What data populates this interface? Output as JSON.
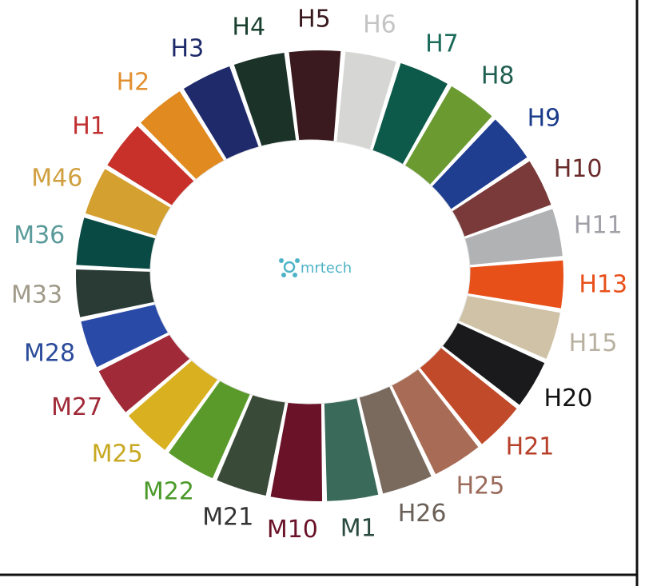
{
  "logo": {
    "text": "mrtech",
    "color": "#4fb3c8"
  },
  "swatches": [
    {
      "label": "H5",
      "color": "#3a1a1e",
      "label_color": "#3a1a1e"
    },
    {
      "label": "H6",
      "color": "#d6d6d4",
      "label_color": "#c4c4c4"
    },
    {
      "label": "H7",
      "color": "#0d5a4a",
      "label_color": "#1a6a5a"
    },
    {
      "label": "H8",
      "color": "#6a9a30",
      "label_color": "#1f5f50"
    },
    {
      "label": "H9",
      "color": "#1f3e90",
      "label_color": "#1a3a8a"
    },
    {
      "label": "H10",
      "color": "#7a3a3a",
      "label_color": "#6a2a2a"
    },
    {
      "label": "H11",
      "color": "#b0b2b4",
      "label_color": "#a0a0a8"
    },
    {
      "label": "H13",
      "color": "#e8501a",
      "label_color": "#e8501a"
    },
    {
      "label": "H15",
      "color": "#cfc2a6",
      "label_color": "#b8b0a0"
    },
    {
      "label": "H20",
      "color": "#1a1a1c",
      "label_color": "#111111"
    },
    {
      "label": "H21",
      "color": "#c04a2a",
      "label_color": "#b8402a"
    },
    {
      "label": "H25",
      "color": "#a86c56",
      "label_color": "#9a6a5a"
    },
    {
      "label": "H26",
      "color": "#7a6a5e",
      "label_color": "#6a6058"
    },
    {
      "label": "M1",
      "color": "#3a6a5a",
      "label_color": "#2a4a40"
    },
    {
      "label": "M10",
      "color": "#6a1228",
      "label_color": "#6a1228"
    },
    {
      "label": "M21",
      "color": "#3a4a38",
      "label_color": "#333333"
    },
    {
      "label": "M22",
      "color": "#5a9a2a",
      "label_color": "#4a9a2a"
    },
    {
      "label": "M25",
      "color": "#d8b020",
      "label_color": "#c8a820"
    },
    {
      "label": "M27",
      "color": "#a02a38",
      "label_color": "#a02a38"
    },
    {
      "label": "M28",
      "color": "#2a4aa8",
      "label_color": "#2a4a9a"
    },
    {
      "label": "M33",
      "color": "#2a3a34",
      "label_color": "#a09a8a"
    },
    {
      "label": "M36",
      "color": "#0a4a44",
      "label_color": "#5a9a9a"
    },
    {
      "label": "M46",
      "color": "#d4a030",
      "label_color": "#d0a040"
    },
    {
      "label": "H1",
      "color": "#c8302a",
      "label_color": "#c03030"
    },
    {
      "label": "H2",
      "color": "#e08a20",
      "label_color": "#e09030"
    },
    {
      "label": "H3",
      "color": "#1e2a6a",
      "label_color": "#1e2a6a"
    },
    {
      "label": "H4",
      "color": "#1a3228",
      "label_color": "#1a4030"
    }
  ]
}
